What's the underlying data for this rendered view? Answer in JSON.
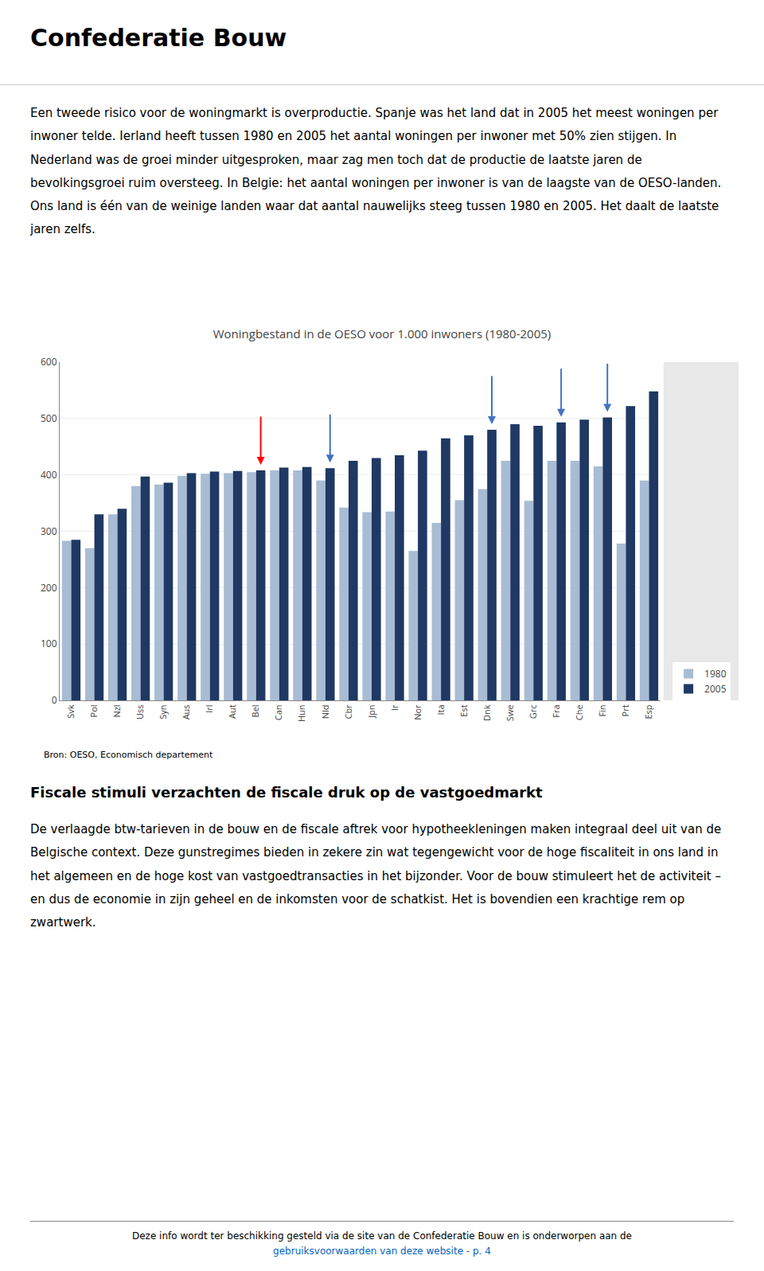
{
  "header": "Confederatie Bouw",
  "text1": "Een tweede risico voor de woningmarkt is overproductie. Spanje was het land dat in 2005 het meest woningen per inwoner telde. Ierland heeft tussen 1980 en 2005 het aantal woningen per inwoner met 50% zien stijgen. In Nederland was de groei minder uitgesproken, maar zag men toch dat de productie de laatste jaren de bevolkingsgroei ruim oversteeg. In Belgie: het aantal woningen per inwoner is van de laagste van de OESO-landen. Ons land is één van de weinige landen waar dat aantal nauwelijks steeg tussen 1980 en 2005. Het daalt de laatste jaren zelfs.",
  "section2_title": "Fiscale stimuli verzachten de fiscale druk op de vastgoedmarkt",
  "section2_body": "De verlaagde btw-tarieven in de bouw en de fiscale aftrek voor hypotheekleningen maken integraal deel uit van de Belgische context. Deze gunstregimes bieden in zekere zin wat tegengewicht voor de hoge fiscaliteit in ons land in het algemeen en de hoge kost van vastgoedtransacties in het bijzonder. Voor de bouw stimuleert het de activiteit – en dus de economie in zijn geheel en de inkomsten voor de schatkist. Het is bovendien een krachtige rem op zwartwerk.",
  "footer_line1": "Deze info wordt ter beschikking gesteld via de site van de Confederatie Bouw en is onderworpen aan de",
  "footer_line2": "gebruiksvoorwaarden van deze website - p. 4",
  "chart_data": {
    "type": "bar",
    "title": "Woningbestand in de OESO voor 1.000 inwoners (1980-2005)",
    "source": "Bron: OESO, Economisch departement",
    "categories": [
      "Svk",
      "Pol",
      "Nzl",
      "Uss",
      "Syn",
      "Aus",
      "Irl",
      "Aut",
      "Bel",
      "Can",
      "Hun",
      "Nld",
      "Cbr",
      "Jpn",
      "Ir",
      "Nor",
      "Ita",
      "Est",
      "Dnk",
      "Swe",
      "Grc",
      "Fra",
      "Che",
      "Fin",
      "Prt",
      "Esp"
    ],
    "series": [
      {
        "name": "1980",
        "color": "#a8bcd4",
        "values": [
          283,
          270,
          330,
          380,
          383,
          398,
          402,
          403,
          405,
          408,
          408,
          390,
          342,
          334,
          335,
          265,
          315,
          355,
          375,
          425,
          354,
          425,
          425,
          415,
          278,
          390
        ]
      },
      {
        "name": "2005",
        "color": "#1f3864",
        "values": [
          285,
          330,
          340,
          397,
          386,
          403,
          406,
          407,
          408,
          413,
          414,
          412,
          425,
          430,
          435,
          443,
          465,
          470,
          480,
          490,
          487,
          493,
          498,
          502,
          522,
          548
        ]
      }
    ],
    "ylim": [
      0,
      600
    ],
    "yticks": [
      0,
      100,
      200,
      300,
      400,
      500,
      600
    ],
    "grid": true,
    "legend": "lower right",
    "arrows": [
      {
        "index": 8,
        "color": "red"
      },
      {
        "index": 11,
        "color": "#4472c4"
      },
      {
        "index": 18,
        "color": "#4472c4"
      },
      {
        "index": 21,
        "color": "#4472c4"
      },
      {
        "index": 23,
        "color": "#4472c4"
      }
    ]
  }
}
